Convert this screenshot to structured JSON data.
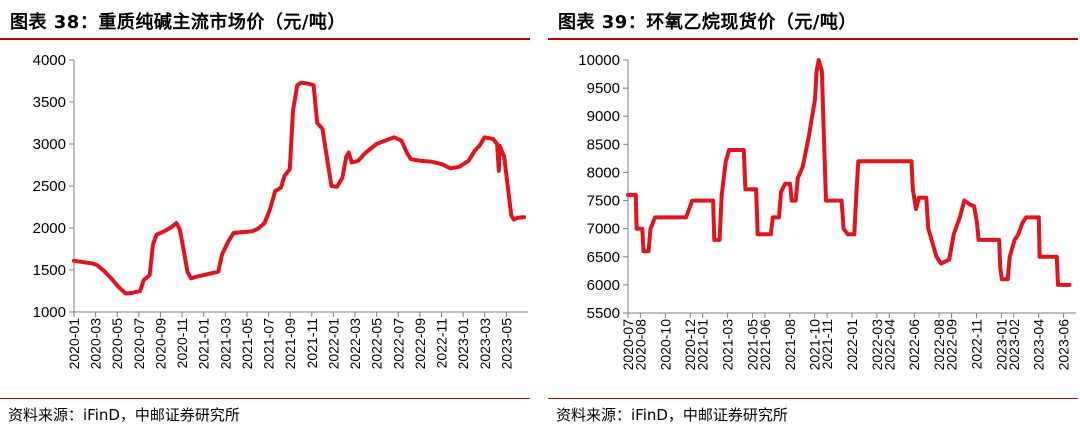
{
  "charts": [
    {
      "fig_label": "图表 38：重质纯碱主流市场价（元/吨）",
      "source": "资料来源：iFinD，中邮证券研究所",
      "chart_data": {
        "type": "line",
        "title": "重质纯碱主流市场价",
        "unit": "元/吨",
        "xlabel": "",
        "ylabel": "",
        "ylim": [
          1000,
          4000
        ],
        "yticks": [
          1000,
          1500,
          2000,
          2500,
          3000,
          3500,
          4000
        ],
        "xtick_labels": [
          "2020-01",
          "2020-03",
          "2020-05",
          "2020-07",
          "2020-09",
          "2020-11",
          "2021-01",
          "2021-03",
          "2021-05",
          "2021-07",
          "2021-09",
          "2021-11",
          "2022-01",
          "2022-03",
          "2022-05",
          "2022-07",
          "2022-09",
          "2022-11",
          "2023-01",
          "2023-03",
          "2023-05"
        ],
        "x_start": "2020-01",
        "x_end": "2023-06",
        "color": "#e1141e",
        "grid": false,
        "series": [
          {
            "name": "",
            "points": [
              [
                "2020-01-01",
                1610
              ],
              [
                "2020-02-01",
                1590
              ],
              [
                "2020-02-20",
                1580
              ],
              [
                "2020-03-05",
                1560
              ],
              [
                "2020-03-25",
                1490
              ],
              [
                "2020-04-15",
                1400
              ],
              [
                "2020-05-05",
                1300
              ],
              [
                "2020-05-25",
                1220
              ],
              [
                "2020-06-15",
                1230
              ],
              [
                "2020-07-05",
                1250
              ],
              [
                "2020-07-15",
                1380
              ],
              [
                "2020-08-01",
                1440
              ],
              [
                "2020-08-10",
                1800
              ],
              [
                "2020-08-20",
                1920
              ],
              [
                "2020-09-10",
                1960
              ],
              [
                "2020-10-01",
                2010
              ],
              [
                "2020-10-15",
                2060
              ],
              [
                "2020-10-25",
                1980
              ],
              [
                "2020-11-05",
                1720
              ],
              [
                "2020-11-15",
                1480
              ],
              [
                "2020-11-25",
                1400
              ],
              [
                "2020-12-10",
                1420
              ],
              [
                "2021-01-01",
                1440
              ],
              [
                "2021-01-20",
                1460
              ],
              [
                "2021-02-10",
                1480
              ],
              [
                "2021-02-20",
                1680
              ],
              [
                "2021-03-10",
                1840
              ],
              [
                "2021-03-25",
                1940
              ],
              [
                "2021-04-15",
                1950
              ],
              [
                "2021-05-15",
                1960
              ],
              [
                "2021-06-01",
                1990
              ],
              [
                "2021-06-20",
                2060
              ],
              [
                "2021-07-05",
                2220
              ],
              [
                "2021-07-20",
                2440
              ],
              [
                "2021-08-05",
                2480
              ],
              [
                "2021-08-15",
                2620
              ],
              [
                "2021-08-30",
                2700
              ],
              [
                "2021-09-08",
                3400
              ],
              [
                "2021-09-20",
                3700
              ],
              [
                "2021-10-01",
                3730
              ],
              [
                "2021-10-20",
                3720
              ],
              [
                "2021-11-05",
                3700
              ],
              [
                "2021-11-15",
                3250
              ],
              [
                "2021-11-30",
                3180
              ],
              [
                "2021-12-10",
                2900
              ],
              [
                "2021-12-25",
                2500
              ],
              [
                "2022-01-10",
                2490
              ],
              [
                "2022-01-25",
                2600
              ],
              [
                "2022-02-05",
                2850
              ],
              [
                "2022-02-12",
                2900
              ],
              [
                "2022-02-20",
                2780
              ],
              [
                "2022-03-10",
                2800
              ],
              [
                "2022-04-01",
                2900
              ],
              [
                "2022-05-01",
                3000
              ],
              [
                "2022-06-01",
                3050
              ],
              [
                "2022-06-20",
                3080
              ],
              [
                "2022-07-10",
                3040
              ],
              [
                "2022-07-25",
                2900
              ],
              [
                "2022-08-05",
                2820
              ],
              [
                "2022-09-01",
                2800
              ],
              [
                "2022-10-01",
                2790
              ],
              [
                "2022-11-01",
                2760
              ],
              [
                "2022-11-25",
                2710
              ],
              [
                "2022-12-20",
                2730
              ],
              [
                "2023-01-15",
                2800
              ],
              [
                "2023-02-01",
                2920
              ],
              [
                "2023-02-15",
                2980
              ],
              [
                "2023-03-01",
                3080
              ],
              [
                "2023-03-25",
                3060
              ],
              [
                "2023-04-05",
                3000
              ],
              [
                "2023-04-10",
                2680
              ],
              [
                "2023-04-12",
                2980
              ],
              [
                "2023-04-25",
                2850
              ],
              [
                "2023-05-05",
                2500
              ],
              [
                "2023-05-15",
                2150
              ],
              [
                "2023-05-22",
                2100
              ],
              [
                "2023-06-01",
                2120
              ],
              [
                "2023-06-20",
                2130
              ]
            ]
          }
        ]
      }
    },
    {
      "fig_label": "图表 39：环氧乙烷现货价（元/吨）",
      "source": "资料来源：iFinD，中邮证券研究所",
      "chart_data": {
        "type": "line",
        "title": "环氧乙烷现货价",
        "unit": "元/吨",
        "xlabel": "",
        "ylabel": "",
        "ylim": [
          5500,
          10000
        ],
        "yticks": [
          5500,
          6000,
          6500,
          7000,
          7500,
          8000,
          8500,
          9000,
          9500,
          10000
        ],
        "xtick_labels": [
          "2020-07",
          "2020-08",
          "2020-10",
          "2020-12",
          "2021-01",
          "2021-03",
          "2021-05",
          "2021-06",
          "2021-08",
          "2021-10",
          "2021-11",
          "2022-01",
          "2022-03",
          "2022-04",
          "2022-06",
          "2022-08",
          "2022-09",
          "2022-11",
          "2023-01",
          "2023-02",
          "2023-04",
          "2023-06"
        ],
        "x_start": "2020-07",
        "x_end": "2023-06",
        "color": "#e1141e",
        "grid": false,
        "series": [
          {
            "name": "",
            "points": [
              [
                "2020-07-01",
                7600
              ],
              [
                "2020-07-20",
                7600
              ],
              [
                "2020-07-22",
                7000
              ],
              [
                "2020-08-05",
                7000
              ],
              [
                "2020-08-08",
                6600
              ],
              [
                "2020-08-20",
                6600
              ],
              [
                "2020-08-25",
                7000
              ],
              [
                "2020-09-05",
                7200
              ],
              [
                "2020-11-20",
                7200
              ],
              [
                "2020-11-25",
                7300
              ],
              [
                "2020-12-05",
                7500
              ],
              [
                "2021-01-25",
                7500
              ],
              [
                "2021-01-28",
                6800
              ],
              [
                "2021-02-10",
                6800
              ],
              [
                "2021-02-15",
                7600
              ],
              [
                "2021-02-25",
                8200
              ],
              [
                "2021-03-05",
                8400
              ],
              [
                "2021-04-10",
                8400
              ],
              [
                "2021-04-14",
                7700
              ],
              [
                "2021-05-10",
                7700
              ],
              [
                "2021-05-14",
                6900
              ],
              [
                "2021-06-15",
                6900
              ],
              [
                "2021-06-20",
                7200
              ],
              [
                "2021-07-05",
                7200
              ],
              [
                "2021-07-10",
                7650
              ],
              [
                "2021-07-20",
                7800
              ],
              [
                "2021-08-01",
                7800
              ],
              [
                "2021-08-05",
                7500
              ],
              [
                "2021-08-15",
                7500
              ],
              [
                "2021-08-20",
                7900
              ],
              [
                "2021-09-01",
                8100
              ],
              [
                "2021-09-15",
                8600
              ],
              [
                "2021-10-01",
                9300
              ],
              [
                "2021-10-05",
                9800
              ],
              [
                "2021-10-10",
                10000
              ],
              [
                "2021-10-18",
                9800
              ],
              [
                "2021-10-22",
                8800
              ],
              [
                "2021-10-28",
                7500
              ],
              [
                "2021-12-05",
                7500
              ],
              [
                "2021-12-10",
                7000
              ],
              [
                "2021-12-20",
                6900
              ],
              [
                "2022-01-05",
                6900
              ],
              [
                "2022-01-10",
                7600
              ],
              [
                "2022-01-15",
                8200
              ],
              [
                "2022-05-25",
                8200
              ],
              [
                "2022-05-28",
                7700
              ],
              [
                "2022-06-05",
                7350
              ],
              [
                "2022-06-12",
                7550
              ],
              [
                "2022-06-30",
                7550
              ],
              [
                "2022-07-05",
                7000
              ],
              [
                "2022-07-25",
                6500
              ],
              [
                "2022-08-05",
                6380
              ],
              [
                "2022-08-25",
                6450
              ],
              [
                "2022-09-05",
                6900
              ],
              [
                "2022-09-20",
                7200
              ],
              [
                "2022-10-01",
                7500
              ],
              [
                "2022-10-15",
                7430
              ],
              [
                "2022-10-25",
                7400
              ],
              [
                "2022-11-01",
                7100
              ],
              [
                "2022-11-05",
                6800
              ],
              [
                "2022-12-25",
                6800
              ],
              [
                "2022-12-28",
                6300
              ],
              [
                "2023-01-01",
                6100
              ],
              [
                "2023-01-15",
                6100
              ],
              [
                "2023-01-20",
                6500
              ],
              [
                "2023-02-01",
                6800
              ],
              [
                "2023-02-10",
                6900
              ],
              [
                "2023-02-20",
                7100
              ],
              [
                "2023-03-01",
                7200
              ],
              [
                "2023-04-01",
                7200
              ],
              [
                "2023-04-03",
                6500
              ],
              [
                "2023-05-15",
                6500
              ],
              [
                "2023-05-18",
                6000
              ],
              [
                "2023-06-15",
                6000
              ]
            ]
          }
        ]
      }
    }
  ]
}
